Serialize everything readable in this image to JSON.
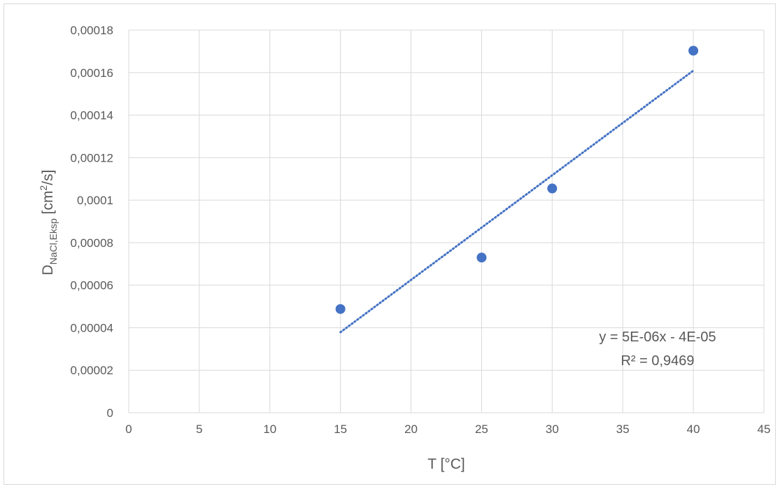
{
  "chart_data": {
    "type": "scatter",
    "xlabel": "T [°C]",
    "ylabel": {
      "main": "D",
      "subscript": "NaCl,Eksp",
      "unit_pre": " [cm",
      "unit_sup": "2",
      "unit_post": "/s]"
    },
    "xlim": [
      0,
      45
    ],
    "ylim": [
      0,
      0.00018
    ],
    "x_ticks": [
      "0",
      "5",
      "10",
      "15",
      "20",
      "25",
      "30",
      "35",
      "40",
      "45"
    ],
    "y_ticks": [
      "0",
      "0,00002",
      "0,00004",
      "0,00006",
      "0,00008",
      "0,0001",
      "0,00012",
      "0,00014",
      "0,00016",
      "0,00018"
    ],
    "grid": true,
    "series": [
      {
        "x": [
          15,
          25,
          30,
          40
        ],
        "y": [
          4.88e-05,
          7.3e-05,
          0.0001055,
          0.0001703
        ],
        "color": "#4472c4"
      }
    ],
    "trendline": {
      "type": "linear",
      "x_range": [
        15,
        40
      ],
      "color": "#4472c4",
      "equation": "y = 5E-06x - 4E-05",
      "r_squared": "R² = 0,9469"
    }
  }
}
